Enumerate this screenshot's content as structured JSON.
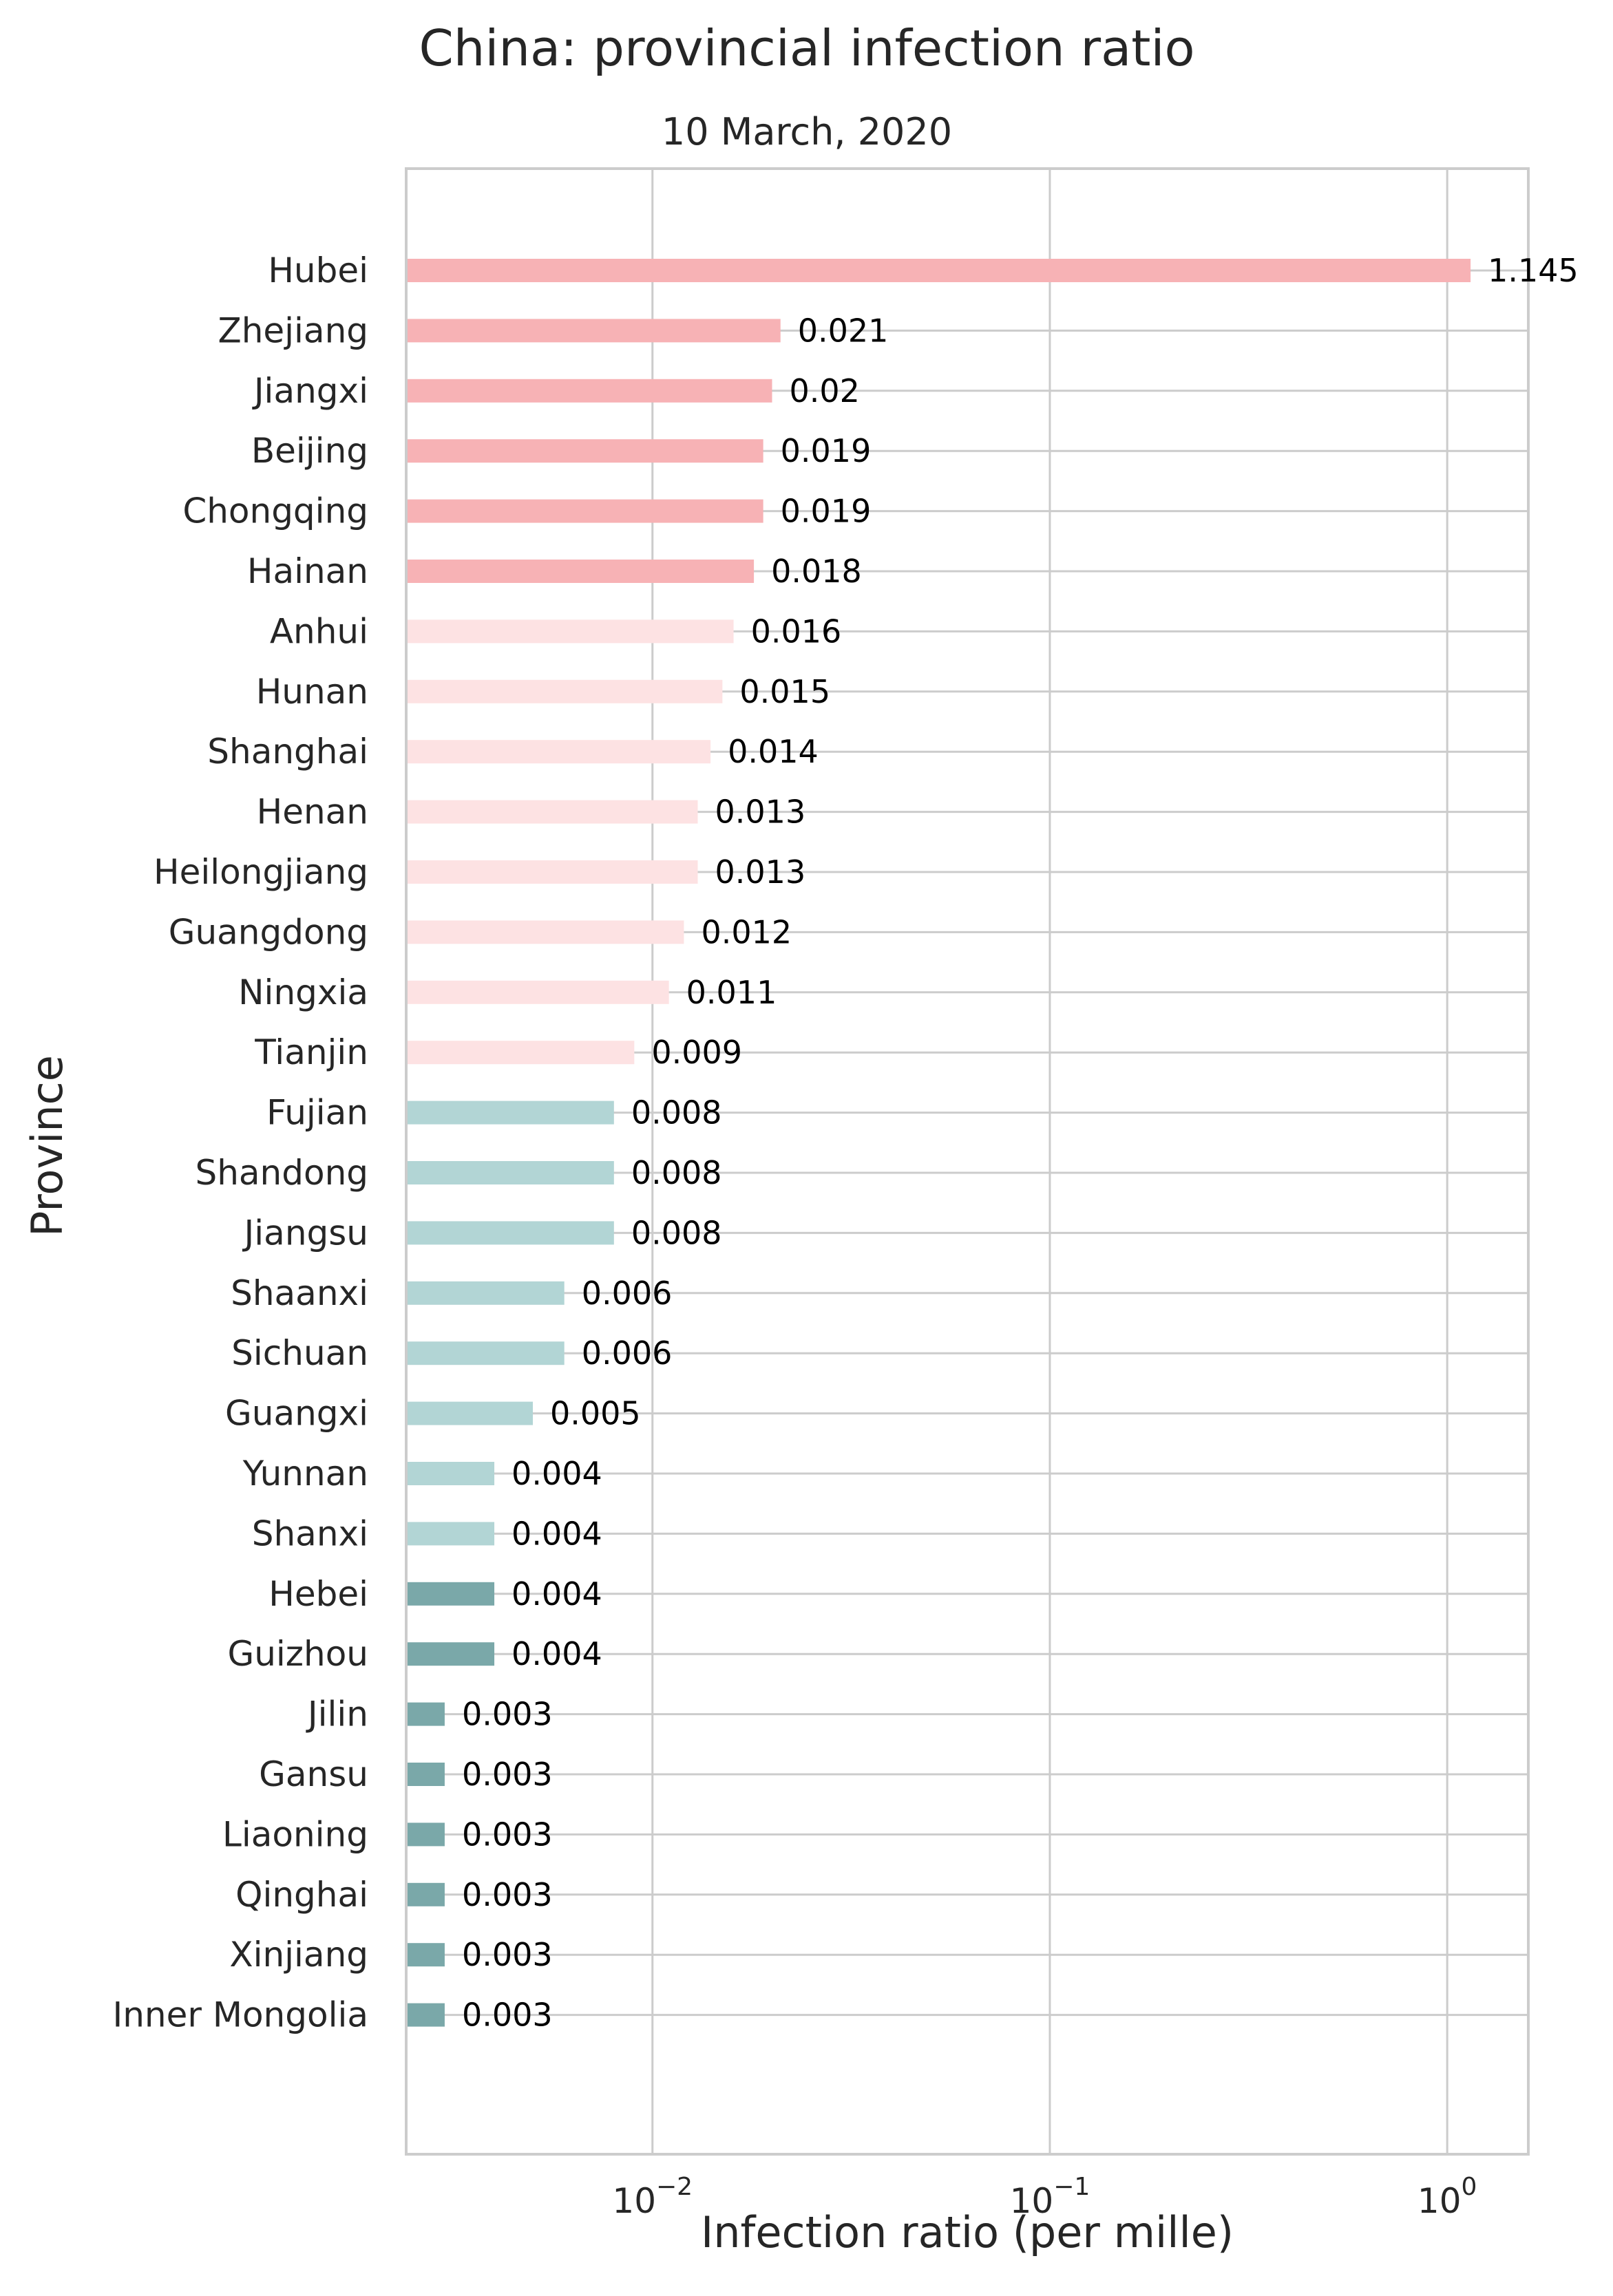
{
  "chart_data": {
    "type": "bar",
    "orientation": "horizontal",
    "title": "China: provincial infection ratio",
    "subtitle": "10 March, 2020",
    "xlabel": "Infection ratio (per mille)",
    "ylabel": "Province",
    "x_scale": "log",
    "xlim": [
      0.0024,
      1.6
    ],
    "x_ticks": [
      {
        "base": "10",
        "exp": "−2",
        "value": 0.01
      },
      {
        "base": "10",
        "exp": "−1",
        "value": 0.1
      },
      {
        "base": "10",
        "exp": "0",
        "value": 1
      }
    ],
    "grid": true,
    "colors": {
      "high": "#f7b2b5",
      "mid": "#fde2e3",
      "low": "#b2d5d5",
      "lowest": "#7aa8a9",
      "grid": "#cccccc",
      "spine": "#cccccc"
    },
    "categories": [
      "Hubei",
      "Zhejiang",
      "Jiangxi",
      "Beijing",
      "Chongqing",
      "Hainan",
      "Anhui",
      "Hunan",
      "Shanghai",
      "Henan",
      "Heilongjiang",
      "Guangdong",
      "Ningxia",
      "Tianjin",
      "Fujian",
      "Shandong",
      "Jiangsu",
      "Shaanxi",
      "Sichuan",
      "Guangxi",
      "Yunnan",
      "Shanxi",
      "Hebei",
      "Guizhou",
      "Jilin",
      "Gansu",
      "Liaoning",
      "Qinghai",
      "Xinjiang",
      "Inner Mongolia"
    ],
    "values": [
      1.145,
      0.021,
      0.02,
      0.019,
      0.019,
      0.018,
      0.016,
      0.015,
      0.014,
      0.013,
      0.013,
      0.012,
      0.011,
      0.009,
      0.008,
      0.008,
      0.008,
      0.006,
      0.006,
      0.005,
      0.004,
      0.004,
      0.004,
      0.004,
      0.003,
      0.003,
      0.003,
      0.003,
      0.003,
      0.003
    ],
    "labels": [
      "1.145",
      "0.021",
      "0.02",
      "0.019",
      "0.019",
      "0.018",
      "0.016",
      "0.015",
      "0.014",
      "0.013",
      "0.013",
      "0.012",
      "0.011",
      "0.009",
      "0.008",
      "0.008",
      "0.008",
      "0.006",
      "0.006",
      "0.005",
      "0.004",
      "0.004",
      "0.004",
      "0.004",
      "0.003",
      "0.003",
      "0.003",
      "0.003",
      "0.003",
      "0.003"
    ],
    "bar_color_group": [
      "high",
      "high",
      "high",
      "high",
      "high",
      "high",
      "mid",
      "mid",
      "mid",
      "mid",
      "mid",
      "mid",
      "mid",
      "mid",
      "low",
      "low",
      "low",
      "low",
      "low",
      "low",
      "low",
      "low",
      "lowest",
      "lowest",
      "lowest",
      "lowest",
      "lowest",
      "lowest",
      "lowest",
      "lowest"
    ]
  }
}
